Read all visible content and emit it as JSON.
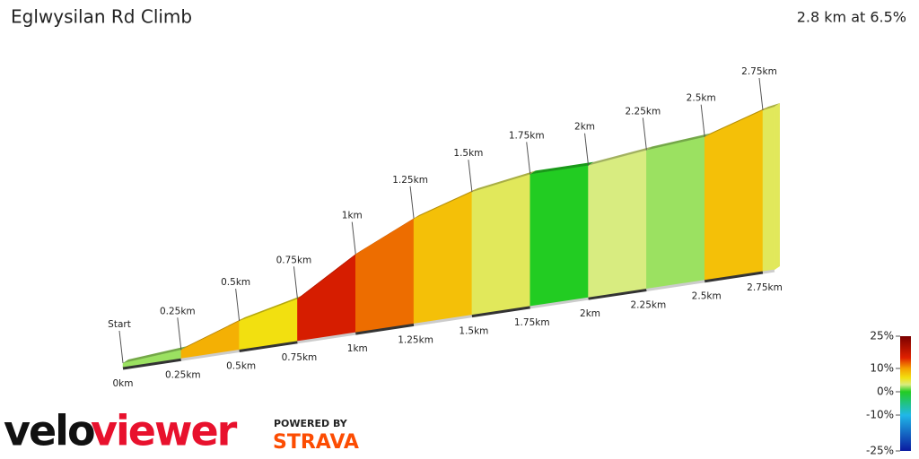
{
  "chart_data": {
    "type": "climb-profile",
    "title": "Eglwysilan Rd Climb",
    "subtitle": "2.8 km at 6.5%",
    "x": [
      0,
      0.25,
      0.5,
      0.75,
      1,
      1.25,
      1.5,
      1.75,
      2,
      2.25,
      2.5,
      2.75
    ],
    "values": [
      2,
      9,
      6,
      16,
      12,
      8,
      4,
      0,
      3,
      2,
      8,
      4
    ],
    "xlim": [
      0,
      2.8
    ],
    "xticks": [
      {
        "value": 0,
        "label": "0km"
      },
      {
        "value": 0.25,
        "label": "0.25km"
      },
      {
        "value": 0.5,
        "label": "0.5km"
      },
      {
        "value": 0.75,
        "label": "0.75km"
      },
      {
        "value": 1,
        "label": "1km"
      },
      {
        "value": 1.25,
        "label": "1.25km"
      },
      {
        "value": 1.5,
        "label": "1.5km"
      },
      {
        "value": 1.75,
        "label": "1.75km"
      },
      {
        "value": 2,
        "label": "2km"
      },
      {
        "value": 2.25,
        "label": "2.25km"
      },
      {
        "value": 2.5,
        "label": "2.5km"
      },
      {
        "value": 2.75,
        "label": "2.75km"
      }
    ],
    "top_markers": [
      {
        "value": 0,
        "label": "Start"
      },
      {
        "value": 0.25,
        "label": "0.25km"
      },
      {
        "value": 0.5,
        "label": "0.5km"
      },
      {
        "value": 0.75,
        "label": "0.75km"
      },
      {
        "value": 1,
        "label": "1km"
      },
      {
        "value": 1.25,
        "label": "1.25km"
      },
      {
        "value": 1.5,
        "label": "1.5km"
      },
      {
        "value": 1.75,
        "label": "1.75km"
      },
      {
        "value": 2,
        "label": "2km"
      },
      {
        "value": 2.25,
        "label": "2.25km"
      },
      {
        "value": 2.5,
        "label": "2.5km"
      },
      {
        "value": 2.75,
        "label": "2.75km"
      }
    ],
    "legend_ticks": [
      {
        "value": 25,
        "label": "25%"
      },
      {
        "value": 10,
        "label": "10%"
      },
      {
        "value": 0,
        "label": "0%"
      },
      {
        "value": -10,
        "label": "-10%"
      },
      {
        "value": -25,
        "label": "-25%"
      }
    ],
    "colorscale": [
      {
        "value": -25,
        "color": "#0a1aa0"
      },
      {
        "value": -10,
        "color": "#20b8e8"
      },
      {
        "value": 0,
        "color": "#22cc22"
      },
      {
        "value": 3,
        "color": "#d8ec80"
      },
      {
        "value": 6,
        "color": "#f2e010"
      },
      {
        "value": 10,
        "color": "#f5a000"
      },
      {
        "value": 15,
        "color": "#e02000"
      },
      {
        "value": 25,
        "color": "#7a0000"
      }
    ]
  },
  "branding": {
    "velo": "velo",
    "viewer": "viewer",
    "powered": "POWERED BY",
    "strava": "STRAVA"
  }
}
